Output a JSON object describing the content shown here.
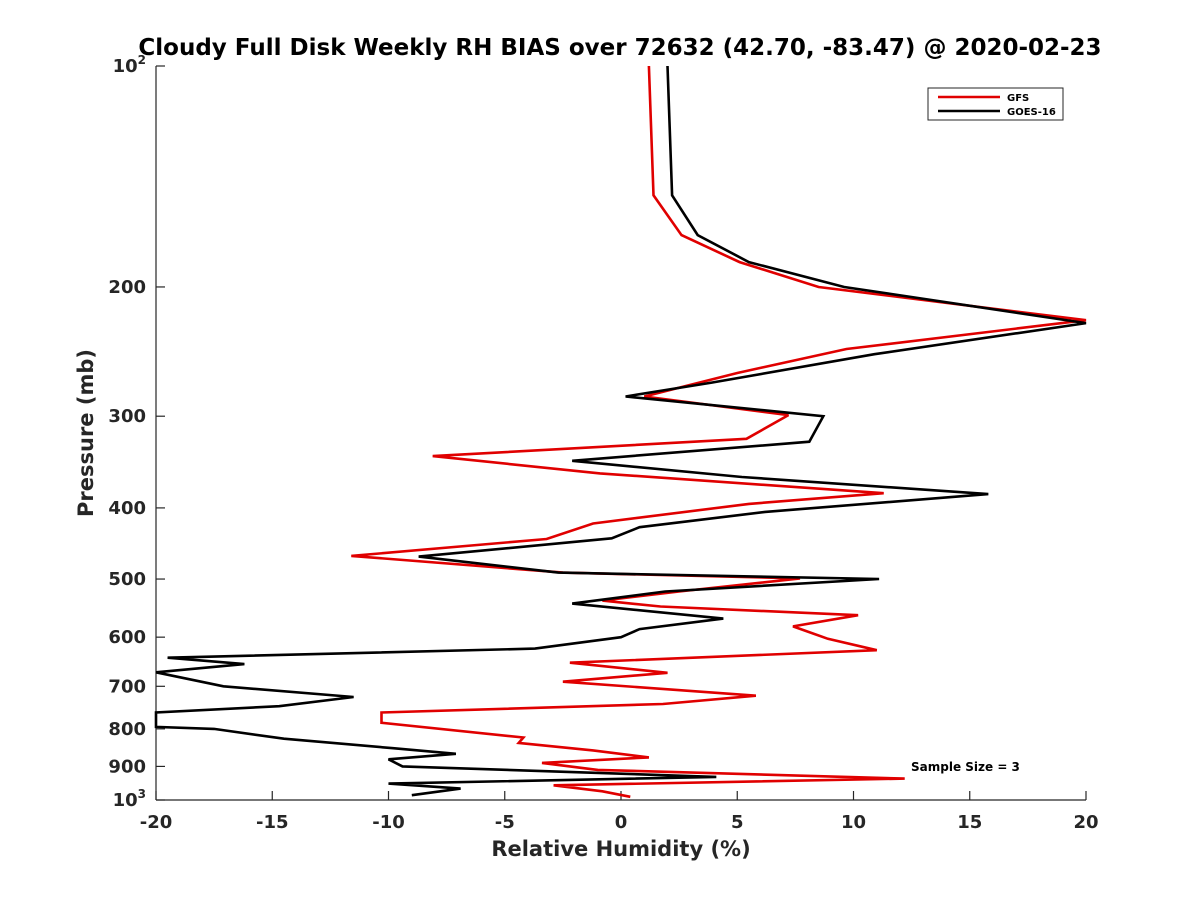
{
  "chart_data": {
    "type": "line",
    "title": "Cloudy Full Disk Weekly RH BIAS over 72632 (42.70, -83.47) @ 2020-02-23",
    "xlabel": "Relative Humidity (%)",
    "ylabel": "Pressure (mb)",
    "xlim": [
      -20,
      20
    ],
    "ylim": [
      100,
      1000
    ],
    "y_scale": "log",
    "y_reversed": true,
    "grid": false,
    "x_ticks": [
      -20,
      -15,
      -10,
      -5,
      0,
      5,
      10,
      15,
      20
    ],
    "x_tick_labels": [
      "-20",
      "-15",
      "-10",
      "-5",
      "0",
      "5",
      "10",
      "15",
      "20"
    ],
    "y_ticks": [
      {
        "value": 100,
        "label": "10",
        "exp": "2"
      },
      {
        "value": 200,
        "label": "200"
      },
      {
        "value": 300,
        "label": "300"
      },
      {
        "value": 400,
        "label": "400"
      },
      {
        "value": 500,
        "label": "500"
      },
      {
        "value": 600,
        "label": "600"
      },
      {
        "value": 700,
        "label": "700"
      },
      {
        "value": 800,
        "label": "800"
      },
      {
        "value": 900,
        "label": "900"
      },
      {
        "value": 1000,
        "label": "10",
        "exp": "3"
      }
    ],
    "legend": {
      "position": "top-right"
    },
    "annotation": "Sample Size = 3",
    "series": [
      {
        "name": "GFS",
        "color": "#e00000",
        "points": [
          {
            "rh": 1.2,
            "p": 100
          },
          {
            "rh": 1.4,
            "p": 150
          },
          {
            "rh": 2.6,
            "p": 170
          },
          {
            "rh": 5.1,
            "p": 185
          },
          {
            "rh": 8.5,
            "p": 200
          },
          {
            "rh": 20.0,
            "p": 222
          },
          {
            "rh": 9.7,
            "p": 243
          },
          {
            "rh": 5.0,
            "p": 262
          },
          {
            "rh": 1.0,
            "p": 282
          },
          {
            "rh": 7.2,
            "p": 299
          },
          {
            "rh": 5.4,
            "p": 322
          },
          {
            "rh": -8.1,
            "p": 340
          },
          {
            "rh": -0.9,
            "p": 359
          },
          {
            "rh": 11.3,
            "p": 382
          },
          {
            "rh": 5.5,
            "p": 395
          },
          {
            "rh": -1.2,
            "p": 420
          },
          {
            "rh": -3.2,
            "p": 441
          },
          {
            "rh": -11.6,
            "p": 465
          },
          {
            "rh": -2.5,
            "p": 490
          },
          {
            "rh": 7.7,
            "p": 499
          },
          {
            "rh": 2.5,
            "p": 520
          },
          {
            "rh": -0.8,
            "p": 535
          },
          {
            "rh": 1.7,
            "p": 545
          },
          {
            "rh": 10.2,
            "p": 560
          },
          {
            "rh": 7.4,
            "p": 580
          },
          {
            "rh": 8.9,
            "p": 603
          },
          {
            "rh": 11.0,
            "p": 625
          },
          {
            "rh": -2.2,
            "p": 650
          },
          {
            "rh": 2.0,
            "p": 671
          },
          {
            "rh": -2.5,
            "p": 690
          },
          {
            "rh": 5.8,
            "p": 721
          },
          {
            "rh": 1.8,
            "p": 740
          },
          {
            "rh": -10.3,
            "p": 760
          },
          {
            "rh": -10.3,
            "p": 785
          },
          {
            "rh": -4.2,
            "p": 822
          },
          {
            "rh": -4.4,
            "p": 836
          },
          {
            "rh": -1.2,
            "p": 856
          },
          {
            "rh": 1.2,
            "p": 875
          },
          {
            "rh": -3.4,
            "p": 890
          },
          {
            "rh": -1.0,
            "p": 910
          },
          {
            "rh": 12.2,
            "p": 935
          },
          {
            "rh": -2.9,
            "p": 955
          },
          {
            "rh": -0.8,
            "p": 973
          },
          {
            "rh": 0.4,
            "p": 990
          }
        ]
      },
      {
        "name": "GOES-16",
        "color": "#000000",
        "points": [
          {
            "rh": 2.0,
            "p": 100
          },
          {
            "rh": 2.2,
            "p": 150
          },
          {
            "rh": 3.3,
            "p": 170
          },
          {
            "rh": 5.5,
            "p": 185
          },
          {
            "rh": 9.6,
            "p": 200
          },
          {
            "rh": 20.0,
            "p": 224
          },
          {
            "rh": 10.9,
            "p": 247
          },
          {
            "rh": 3.9,
            "p": 270
          },
          {
            "rh": 0.2,
            "p": 282
          },
          {
            "rh": 8.7,
            "p": 300
          },
          {
            "rh": 8.1,
            "p": 325
          },
          {
            "rh": -2.1,
            "p": 345
          },
          {
            "rh": 5.2,
            "p": 363
          },
          {
            "rh": 15.8,
            "p": 383
          },
          {
            "rh": 6.2,
            "p": 405
          },
          {
            "rh": 0.8,
            "p": 425
          },
          {
            "rh": -0.4,
            "p": 440
          },
          {
            "rh": -8.7,
            "p": 466
          },
          {
            "rh": -2.7,
            "p": 490
          },
          {
            "rh": 11.1,
            "p": 500
          },
          {
            "rh": 1.9,
            "p": 520
          },
          {
            "rh": -2.1,
            "p": 540
          },
          {
            "rh": 4.4,
            "p": 566
          },
          {
            "rh": 0.8,
            "p": 585
          },
          {
            "rh": 0.0,
            "p": 600
          },
          {
            "rh": -3.7,
            "p": 622
          },
          {
            "rh": -19.5,
            "p": 640
          },
          {
            "rh": -16.2,
            "p": 653
          },
          {
            "rh": -20.0,
            "p": 670
          },
          {
            "rh": -17.1,
            "p": 700
          },
          {
            "rh": -11.5,
            "p": 724
          },
          {
            "rh": -14.7,
            "p": 745
          },
          {
            "rh": -20.0,
            "p": 760
          },
          {
            "rh": -20.0,
            "p": 795
          },
          {
            "rh": -17.5,
            "p": 800
          },
          {
            "rh": -14.5,
            "p": 825
          },
          {
            "rh": -9.8,
            "p": 850
          },
          {
            "rh": -7.1,
            "p": 865
          },
          {
            "rh": -10.0,
            "p": 880
          },
          {
            "rh": -9.4,
            "p": 900
          },
          {
            "rh": 4.1,
            "p": 930
          },
          {
            "rh": -10.0,
            "p": 950
          },
          {
            "rh": -6.9,
            "p": 965
          },
          {
            "rh": -9.0,
            "p": 985
          }
        ]
      }
    ]
  }
}
